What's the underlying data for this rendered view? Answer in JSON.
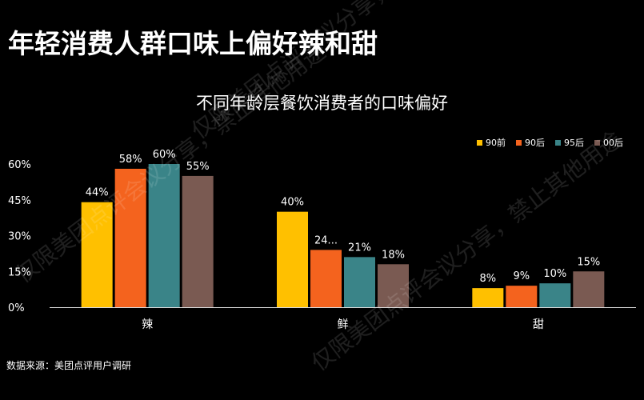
{
  "headline": "年轻消费人群口味上偏好辣和甜",
  "source": "数据来源：美团点评用户调研",
  "watermark": "仅限美团点评会议分享，禁止其他用途",
  "colors": {
    "bg": "#000000",
    "axis": "#d9d9d9",
    "text": "#ffffff"
  },
  "chart_data": {
    "type": "bar",
    "title": "不同年龄层餐饮消费者的口味偏好",
    "categories": [
      "辣",
      "鲜",
      "甜"
    ],
    "series": [
      {
        "name": "90前",
        "color": "#ffc000",
        "values": [
          44,
          40,
          8
        ],
        "labels": [
          "44%",
          "40%",
          "8%"
        ]
      },
      {
        "name": "90后",
        "color": "#f4631e",
        "values": [
          58,
          24,
          9
        ],
        "labels": [
          "58%",
          "24...",
          "9%"
        ]
      },
      {
        "name": "95后",
        "color": "#3a8488",
        "values": [
          60,
          21,
          10
        ],
        "labels": [
          "60%",
          "21%",
          "10%"
        ]
      },
      {
        "name": "00后",
        "color": "#7a5a52",
        "values": [
          55,
          18,
          15
        ],
        "labels": [
          "55%",
          "18%",
          "15%"
        ]
      }
    ],
    "yticks": [
      "0%",
      "15%",
      "30%",
      "45%",
      "60%"
    ],
    "ylim": [
      0,
      60
    ],
    "legend_position": "top-right",
    "grid": false
  }
}
